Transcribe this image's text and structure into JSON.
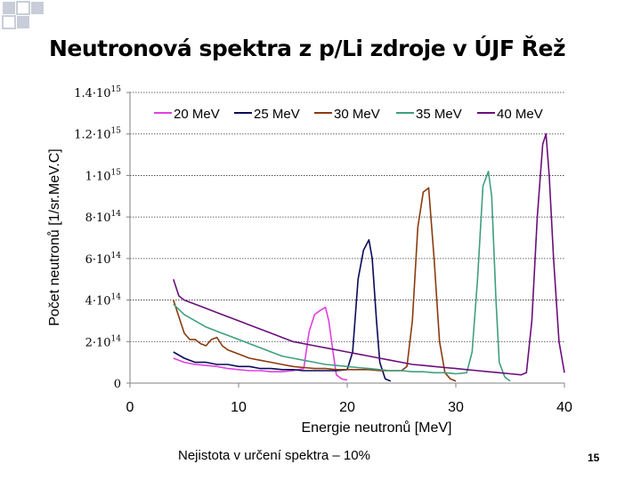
{
  "slide": {
    "title": "Neutronová spektra z p/Li  zdroje  v ÚJF Řež",
    "footnote": "Nejistota v určení spektra – 10%",
    "page_number": "15"
  },
  "chart_data": {
    "type": "line",
    "xlabel": "Energie neutronů [MeV]",
    "ylabel": "Počet neutronů [1/sr.MeV.C]",
    "xlim": [
      0,
      40
    ],
    "ylim": [
      0,
      1400000000000000.0
    ],
    "x_ticks": [
      0,
      10,
      20,
      30,
      40
    ],
    "x_tick_labels": [
      "0",
      "10",
      "20",
      "30",
      "40"
    ],
    "y_ticks": [
      0,
      200000000000000.0,
      400000000000000.0,
      600000000000000.0,
      800000000000000.0,
      1000000000000000.0,
      1200000000000000.0,
      1400000000000000.0
    ],
    "y_tick_labels": [
      {
        "base": "0",
        "exp": ""
      },
      {
        "base": "2·10",
        "exp": "14"
      },
      {
        "base": "4·10",
        "exp": "14"
      },
      {
        "base": "6·10",
        "exp": "14"
      },
      {
        "base": "8·10",
        "exp": "14"
      },
      {
        "base": "1·10",
        "exp": "15"
      },
      {
        "base": "1.2·10",
        "exp": "15"
      },
      {
        "base": "1.4·10",
        "exp": "15"
      }
    ],
    "grid": "horizontal dotted",
    "legend_position": "top",
    "series": [
      {
        "name": "20 MeV",
        "color": "#e040e0",
        "points": [
          [
            4,
            120000000000000.0
          ],
          [
            5,
            100000000000000.0
          ],
          [
            6,
            90000000000000.0
          ],
          [
            7,
            85000000000000.0
          ],
          [
            8,
            80000000000000.0
          ],
          [
            9,
            70000000000000.0
          ],
          [
            10,
            65000000000000.0
          ],
          [
            11,
            60000000000000.0
          ],
          [
            12,
            60000000000000.0
          ],
          [
            13,
            55000000000000.0
          ],
          [
            14,
            55000000000000.0
          ],
          [
            15,
            60000000000000.0
          ],
          [
            16,
            70000000000000.0
          ],
          [
            16.5,
            250000000000000.0
          ],
          [
            17,
            330000000000000.0
          ],
          [
            17.5,
            350000000000000.0
          ],
          [
            18,
            365000000000000.0
          ],
          [
            18.3,
            300000000000000.0
          ],
          [
            18.7,
            150000000000000.0
          ],
          [
            19,
            40000000000000.0
          ],
          [
            19.5,
            20000000000000.0
          ],
          [
            20,
            15000000000000.0
          ]
        ]
      },
      {
        "name": "25 MeV",
        "color": "#0a0a5a",
        "points": [
          [
            4,
            150000000000000.0
          ],
          [
            5,
            120000000000000.0
          ],
          [
            6,
            100000000000000.0
          ],
          [
            7,
            100000000000000.0
          ],
          [
            8,
            90000000000000.0
          ],
          [
            9,
            90000000000000.0
          ],
          [
            10,
            80000000000000.0
          ],
          [
            11,
            80000000000000.0
          ],
          [
            12,
            70000000000000.0
          ],
          [
            13,
            70000000000000.0
          ],
          [
            14,
            65000000000000.0
          ],
          [
            15,
            65000000000000.0
          ],
          [
            16,
            60000000000000.0
          ],
          [
            17,
            60000000000000.0
          ],
          [
            18,
            60000000000000.0
          ],
          [
            19,
            60000000000000.0
          ],
          [
            20,
            65000000000000.0
          ],
          [
            20.5,
            150000000000000.0
          ],
          [
            21,
            500000000000000.0
          ],
          [
            21.5,
            640000000000000.0
          ],
          [
            22,
            690000000000000.0
          ],
          [
            22.3,
            600000000000000.0
          ],
          [
            22.7,
            300000000000000.0
          ],
          [
            23,
            100000000000000.0
          ],
          [
            23.5,
            20000000000000.0
          ],
          [
            24,
            10000000000000.0
          ]
        ]
      },
      {
        "name": "30 MeV",
        "color": "#8b3a0f",
        "points": [
          [
            4,
            400000000000000.0
          ],
          [
            4.5,
            320000000000000.0
          ],
          [
            5,
            240000000000000.0
          ],
          [
            5.5,
            210000000000000.0
          ],
          [
            6,
            210000000000000.0
          ],
          [
            6.5,
            190000000000000.0
          ],
          [
            7,
            180000000000000.0
          ],
          [
            7.5,
            210000000000000.0
          ],
          [
            8,
            220000000000000.0
          ],
          [
            8.5,
            180000000000000.0
          ],
          [
            9,
            160000000000000.0
          ],
          [
            10,
            140000000000000.0
          ],
          [
            11,
            120000000000000.0
          ],
          [
            12,
            110000000000000.0
          ],
          [
            13,
            100000000000000.0
          ],
          [
            14,
            90000000000000.0
          ],
          [
            15,
            80000000000000.0
          ],
          [
            16,
            75000000000000.0
          ],
          [
            17,
            70000000000000.0
          ],
          [
            18,
            70000000000000.0
          ],
          [
            19,
            65000000000000.0
          ],
          [
            20,
            65000000000000.0
          ],
          [
            21,
            65000000000000.0
          ],
          [
            22,
            65000000000000.0
          ],
          [
            23,
            60000000000000.0
          ],
          [
            24,
            60000000000000.0
          ],
          [
            25,
            60000000000000.0
          ],
          [
            25.5,
            80000000000000.0
          ],
          [
            26,
            300000000000000.0
          ],
          [
            26.5,
            750000000000000.0
          ],
          [
            27,
            920000000000000.0
          ],
          [
            27.5,
            940000000000000.0
          ],
          [
            28,
            600000000000000.0
          ],
          [
            28.5,
            200000000000000.0
          ],
          [
            29,
            50000000000000.0
          ],
          [
            29.5,
            20000000000000.0
          ],
          [
            30,
            10000000000000.0
          ]
        ]
      },
      {
        "name": "35 MeV",
        "color": "#3f9f7f",
        "points": [
          [
            4,
            380000000000000.0
          ],
          [
            5,
            330000000000000.0
          ],
          [
            6,
            300000000000000.0
          ],
          [
            7,
            270000000000000.0
          ],
          [
            8,
            250000000000000.0
          ],
          [
            9,
            230000000000000.0
          ],
          [
            10,
            210000000000000.0
          ],
          [
            11,
            190000000000000.0
          ],
          [
            12,
            170000000000000.0
          ],
          [
            13,
            150000000000000.0
          ],
          [
            14,
            130000000000000.0
          ],
          [
            15,
            120000000000000.0
          ],
          [
            16,
            110000000000000.0
          ],
          [
            17,
            100000000000000.0
          ],
          [
            18,
            90000000000000.0
          ],
          [
            19,
            85000000000000.0
          ],
          [
            20,
            80000000000000.0
          ],
          [
            21,
            75000000000000.0
          ],
          [
            22,
            70000000000000.0
          ],
          [
            23,
            65000000000000.0
          ],
          [
            24,
            60000000000000.0
          ],
          [
            25,
            60000000000000.0
          ],
          [
            26,
            55000000000000.0
          ],
          [
            27,
            55000000000000.0
          ],
          [
            28,
            50000000000000.0
          ],
          [
            29,
            50000000000000.0
          ],
          [
            30,
            45000000000000.0
          ],
          [
            31,
            50000000000000.0
          ],
          [
            31.5,
            150000000000000.0
          ],
          [
            32,
            500000000000000.0
          ],
          [
            32.5,
            950000000000000.0
          ],
          [
            33,
            1020000000000000.0
          ],
          [
            33.3,
            900000000000000.0
          ],
          [
            33.7,
            400000000000000.0
          ],
          [
            34,
            100000000000000.0
          ],
          [
            34.5,
            30000000000000.0
          ],
          [
            35,
            10000000000000.0
          ]
        ]
      },
      {
        "name": "40 MeV",
        "color": "#6a0f7a",
        "points": [
          [
            4,
            500000000000000.0
          ],
          [
            4.5,
            420000000000000.0
          ],
          [
            5,
            400000000000000.0
          ],
          [
            6,
            380000000000000.0
          ],
          [
            7,
            360000000000000.0
          ],
          [
            8,
            340000000000000.0
          ],
          [
            9,
            320000000000000.0
          ],
          [
            10,
            300000000000000.0
          ],
          [
            11,
            280000000000000.0
          ],
          [
            12,
            260000000000000.0
          ],
          [
            13,
            240000000000000.0
          ],
          [
            14,
            220000000000000.0
          ],
          [
            15,
            200000000000000.0
          ],
          [
            16,
            190000000000000.0
          ],
          [
            17,
            180000000000000.0
          ],
          [
            18,
            170000000000000.0
          ],
          [
            19,
            160000000000000.0
          ],
          [
            20,
            150000000000000.0
          ],
          [
            21,
            140000000000000.0
          ],
          [
            22,
            130000000000000.0
          ],
          [
            23,
            120000000000000.0
          ],
          [
            24,
            110000000000000.0
          ],
          [
            25,
            100000000000000.0
          ],
          [
            26,
            90000000000000.0
          ],
          [
            27,
            85000000000000.0
          ],
          [
            28,
            80000000000000.0
          ],
          [
            29,
            75000000000000.0
          ],
          [
            30,
            70000000000000.0
          ],
          [
            31,
            65000000000000.0
          ],
          [
            32,
            60000000000000.0
          ],
          [
            33,
            55000000000000.0
          ],
          [
            34,
            50000000000000.0
          ],
          [
            35,
            45000000000000.0
          ],
          [
            36,
            40000000000000.0
          ],
          [
            36.5,
            50000000000000.0
          ],
          [
            37,
            300000000000000.0
          ],
          [
            37.5,
            800000000000000.0
          ],
          [
            38,
            1150000000000000.0
          ],
          [
            38.3,
            1200000000000000.0
          ],
          [
            38.6,
            1000000000000000.0
          ],
          [
            39,
            600000000000000.0
          ],
          [
            39.5,
            200000000000000.0
          ],
          [
            40,
            50000000000000.0
          ]
        ]
      }
    ]
  }
}
